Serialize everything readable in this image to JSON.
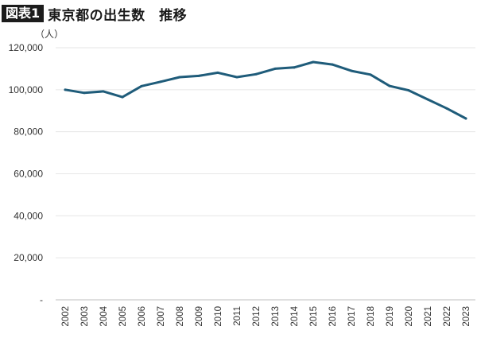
{
  "header": {
    "badge": "図表1",
    "title": "東京都の出生数　推移"
  },
  "chart_data": {
    "type": "line",
    "title": "東京都の出生数　推移",
    "ylabel": "（人）",
    "xlabel": "",
    "ylim": [
      0,
      120000
    ],
    "y_ticks": [
      {
        "value": 0,
        "label": "-"
      },
      {
        "value": 20000,
        "label": "20,000"
      },
      {
        "value": 40000,
        "label": "40,000"
      },
      {
        "value": 60000,
        "label": "60,000"
      },
      {
        "value": 80000,
        "label": "80,000"
      },
      {
        "value": 100000,
        "label": "100,000"
      },
      {
        "value": 120000,
        "label": "120,000"
      }
    ],
    "grid": true,
    "legend": "none",
    "line_color": "#1f5c7a",
    "categories": [
      "2002",
      "2003",
      "2004",
      "2005",
      "2006",
      "2007",
      "2008",
      "2009",
      "2010",
      "2011",
      "2012",
      "2013",
      "2014",
      "2015",
      "2016",
      "2017",
      "2018",
      "2019",
      "2020",
      "2021",
      "2022",
      "2023"
    ],
    "series": [
      {
        "values": [
          100000,
          98500,
          99200,
          96500,
          101700,
          103800,
          106000,
          106600,
          108100,
          106000,
          107400,
          110000,
          110600,
          113200,
          112000,
          109000,
          107200,
          101800,
          99700,
          95400,
          91100,
          86300
        ]
      }
    ]
  }
}
